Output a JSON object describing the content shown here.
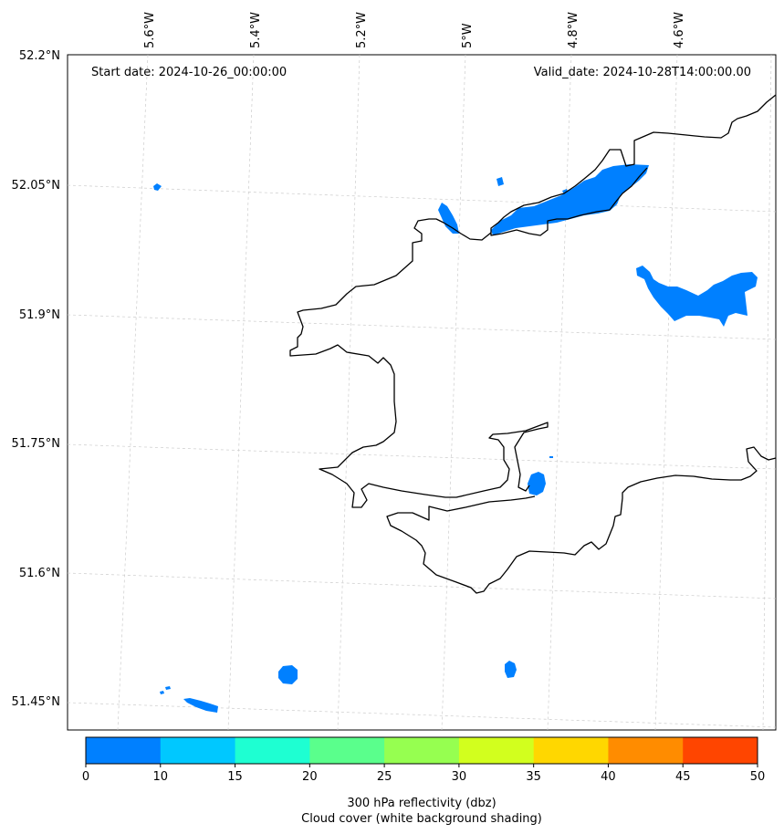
{
  "header": {
    "start_date": "Start date: 2024-10-26_00:00:00",
    "valid_date": "Valid_date: 2024-10-28T14:00:00.00"
  },
  "axes": {
    "lon_labels": [
      "5.6°W",
      "5.4°W",
      "5.2°W",
      "5°W",
      "4.8°W",
      "4.6°W"
    ],
    "lat_labels": [
      "52.2°N",
      "52.05°N",
      "51.9°N",
      "51.75°N",
      "51.6°N",
      "51.45°N"
    ]
  },
  "colorbar": {
    "ticks": [
      "0",
      "10",
      "15",
      "20",
      "25",
      "30",
      "35",
      "40",
      "45",
      "50"
    ],
    "colors": [
      "#0080ff",
      "#00c8ff",
      "#1effd2",
      "#5aff8c",
      "#96ff50",
      "#d2ff1e",
      "#ffd700",
      "#ff8c00",
      "#ff4500"
    ],
    "title_line1": "300 hPa reflectivity (dbz)",
    "title_line2": "Cloud cover (white background shading)"
  },
  "colors": {
    "echo": "#0080ff",
    "coast": "#000000",
    "grid": "#cccccc"
  }
}
